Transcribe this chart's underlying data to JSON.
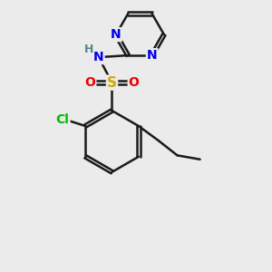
{
  "bg_color": "#ebebeb",
  "bond_color": "#1a1a1a",
  "bond_width": 1.8,
  "dbo": 0.055,
  "atom_colors": {
    "N": "#0000ee",
    "S": "#ccaa00",
    "O": "#ee0000",
    "Cl": "#00bb00",
    "H": "#558888",
    "C": "#1a1a1a"
  },
  "font_size": 10
}
